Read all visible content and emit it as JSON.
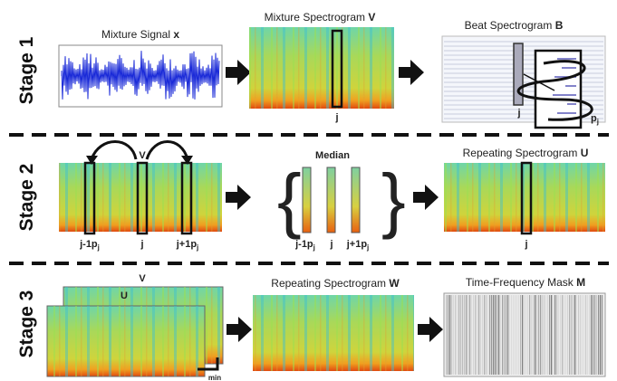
{
  "stages": [
    {
      "label": "Stage 1"
    },
    {
      "label": "Stage 2"
    },
    {
      "label": "Stage 3"
    }
  ],
  "stage1": {
    "signal_title": {
      "text": "Mixture Signal ",
      "var": "x"
    },
    "spectrogram_title": {
      "text": "Mixture Spectrogram ",
      "var": "V"
    },
    "spectrogram_index": "j",
    "beat_title": {
      "text": "Beat Spectrogram ",
      "var": "B"
    },
    "beat_index": "j",
    "period": {
      "text": "p",
      "sub": "j"
    }
  },
  "stage2": {
    "spectrogram_label": "V",
    "indices": [
      {
        "text": "j-1p",
        "sub": "j"
      },
      {
        "text": "j"
      },
      {
        "text": "j+1p",
        "sub": "j"
      }
    ],
    "median_title": "Median",
    "median_indices": [
      {
        "text": "j-1p",
        "sub": "j"
      },
      {
        "text": "j"
      },
      {
        "text": "j+1p",
        "sub": "j"
      }
    ],
    "repeating_title": {
      "text": "Repeating Spectrogram ",
      "var": "U"
    },
    "repeating_index": "j"
  },
  "stage3": {
    "back_label": "V",
    "front_label": "U",
    "min_label": "min",
    "repeating_title": {
      "text": "Repeating Spectrogram ",
      "var": "W"
    },
    "mask_title": {
      "text": "Time-Frequency Mask ",
      "var": "M"
    }
  }
}
